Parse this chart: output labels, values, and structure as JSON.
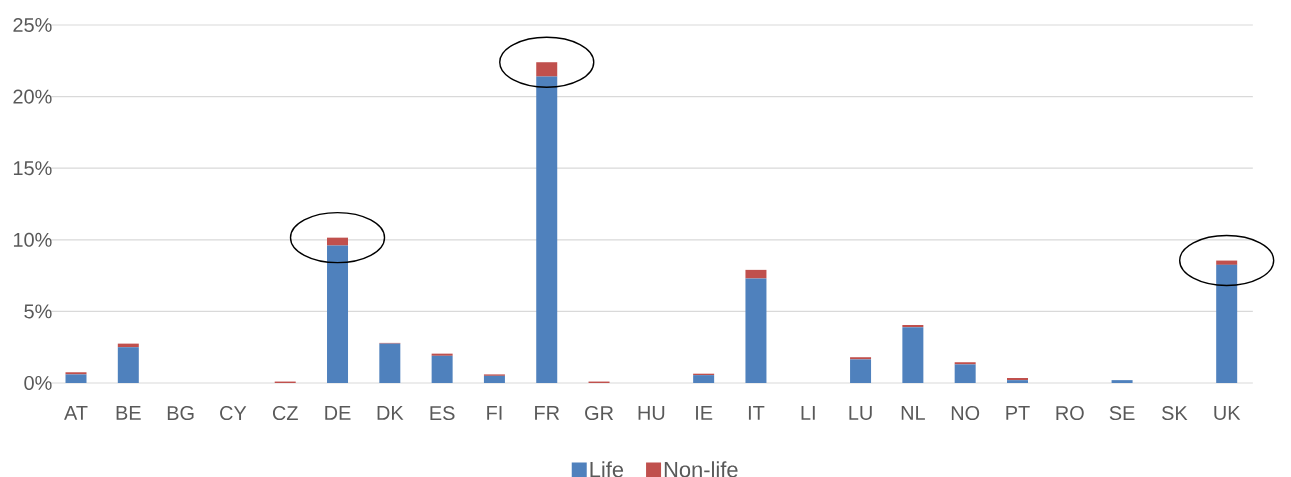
{
  "chart_data": {
    "type": "bar",
    "stacked": true,
    "categories": [
      "AT",
      "BE",
      "BG",
      "CY",
      "CZ",
      "DE",
      "DK",
      "ES",
      "FI",
      "FR",
      "GR",
      "HU",
      "IE",
      "IT",
      "LI",
      "LU",
      "NL",
      "NO",
      "PT",
      "RO",
      "SE",
      "SK",
      "UK"
    ],
    "series": [
      {
        "name": "Life",
        "color": "#4f81bd",
        "values": [
          0.6,
          2.5,
          0,
          0,
          0,
          9.6,
          2.75,
          1.9,
          0.5,
          21.4,
          0,
          0,
          0.55,
          7.3,
          0,
          1.65,
          3.9,
          1.3,
          0.2,
          0,
          0.2,
          0,
          8.25
        ]
      },
      {
        "name": "Non-life",
        "color": "#c0504d",
        "values": [
          0.15,
          0.25,
          0,
          0,
          0.1,
          0.55,
          0.05,
          0.15,
          0.1,
          1.0,
          0.1,
          0,
          0.1,
          0.6,
          0,
          0.15,
          0.15,
          0.15,
          0.15,
          0,
          0,
          0,
          0.3
        ]
      }
    ],
    "ylim": [
      0,
      25
    ],
    "yticks": [
      {
        "value": 0,
        "label": "0%"
      },
      {
        "value": 5,
        "label": "5%"
      },
      {
        "value": 10,
        "label": "10%"
      },
      {
        "value": 15,
        "label": "15%"
      },
      {
        "value": 20,
        "label": "20%"
      },
      {
        "value": 25,
        "label": "25%"
      }
    ],
    "grid": "y",
    "legend": "bottom"
  }
}
